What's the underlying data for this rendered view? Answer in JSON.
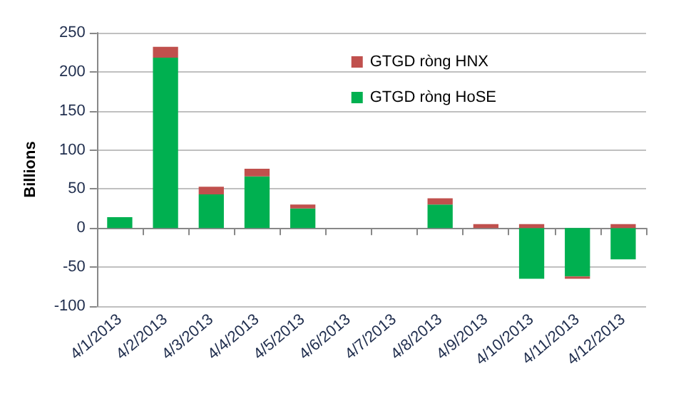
{
  "chart_data": {
    "type": "bar",
    "stacked": true,
    "ylabel": "Billions",
    "categories": [
      "4/1/2013",
      "4/2/2013",
      "4/3/2013",
      "4/4/2013",
      "4/5/2013",
      "4/6/2013",
      "4/7/2013",
      "4/8/2013",
      "4/9/2013",
      "4/10/2013",
      "4/11/2013",
      "4/12/2013"
    ],
    "series": [
      {
        "name": "GTGD ròng HoSE",
        "color": "#00b050",
        "values": [
          14,
          218,
          43,
          66,
          25,
          null,
          null,
          30,
          0,
          -65,
          -62,
          -40
        ]
      },
      {
        "name": "GTGD ròng HNX",
        "color": "#c0504d",
        "values": [
          0,
          14,
          10,
          10,
          5,
          null,
          null,
          8,
          5,
          5,
          -3,
          5
        ]
      }
    ],
    "ylim": [
      -100,
      250
    ],
    "yticks": [
      -100,
      -50,
      0,
      50,
      100,
      150,
      200,
      250
    ],
    "grid": "y",
    "legend": "top right"
  }
}
